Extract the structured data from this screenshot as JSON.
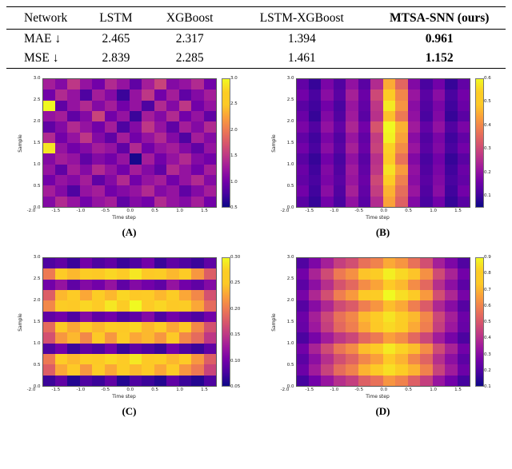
{
  "table": {
    "headers": [
      "Network",
      "LSTM",
      "XGBoost",
      "LSTM-XGBoost",
      "MTSA-SNN (ours)"
    ],
    "rows": [
      {
        "label": "MAE ↓",
        "values": [
          "2.465",
          "2.317",
          "1.394",
          "0.961"
        ]
      },
      {
        "label": "MSE ↓",
        "values": [
          "2.839",
          "2.285",
          "1.461",
          "1.152"
        ]
      }
    ]
  },
  "colors": {
    "colormap": "plasma",
    "plasma_stops": [
      [
        0.0,
        "#0d0887"
      ],
      [
        0.1,
        "#46039f"
      ],
      [
        0.2,
        "#7201a8"
      ],
      [
        0.3,
        "#9c179e"
      ],
      [
        0.4,
        "#bd3786"
      ],
      [
        0.5,
        "#d8576b"
      ],
      [
        0.6,
        "#ed7953"
      ],
      [
        0.7,
        "#fa9e3b"
      ],
      [
        0.8,
        "#fdc926"
      ],
      [
        0.9,
        "#fccd25"
      ],
      [
        1.0,
        "#f0f921"
      ]
    ]
  },
  "chart_data": [
    {
      "type": "heatmap",
      "title": "(A)",
      "xlabel": "Time step",
      "ylabel": "Sample",
      "x_ticks": [
        "-2.0",
        "-1.5",
        "-1.0",
        "-0.5",
        "0.0",
        "0.5",
        "1.0",
        "1.5"
      ],
      "x_tick_values": [
        -2.0,
        -1.5,
        -1.0,
        -0.5,
        0.0,
        0.5,
        1.0,
        1.5
      ],
      "x_range": [
        -2.0,
        1.75
      ],
      "y_ticks": [
        "3.0",
        "2.5",
        "2.0",
        "1.5",
        "1.0",
        "0.5",
        "0.0"
      ],
      "y_tick_values": [
        3.0,
        2.5,
        2.0,
        1.5,
        1.0,
        0.5,
        0.0
      ],
      "y_range": [
        0.0,
        3.0
      ],
      "vmin": 0.5,
      "vmax": 3.0,
      "colorbar_ticks": [
        "3.0",
        "2.5",
        "2.0",
        "1.5",
        "1.0",
        "0.5"
      ],
      "colorbar_tick_values": [
        3.0,
        2.5,
        2.0,
        1.5,
        1.0,
        0.5
      ],
      "values": [
        [
          1.3,
          1.1,
          1.5,
          1.2,
          1.0,
          1.4,
          1.2,
          0.9,
          1.3,
          1.6,
          1.1,
          1.2,
          1.4,
          1.0
        ],
        [
          1.0,
          1.4,
          1.2,
          0.8,
          1.3,
          1.1,
          0.7,
          1.2,
          1.5,
          1.0,
          1.3,
          0.9,
          1.1,
          1.3
        ],
        [
          3.0,
          0.9,
          1.2,
          1.4,
          1.1,
          1.3,
          1.0,
          1.2,
          0.8,
          1.4,
          1.1,
          1.5,
          1.0,
          1.2
        ],
        [
          1.2,
          1.3,
          0.9,
          1.1,
          1.6,
          1.0,
          1.2,
          0.7,
          1.3,
          1.1,
          1.4,
          1.0,
          1.2,
          0.9
        ],
        [
          0.9,
          1.1,
          1.4,
          1.2,
          1.0,
          1.3,
          0.8,
          1.1,
          1.5,
          1.2,
          0.9,
          1.3,
          1.1,
          1.4
        ],
        [
          1.4,
          1.0,
          1.2,
          1.5,
          1.1,
          0.9,
          1.3,
          1.0,
          1.2,
          1.4,
          1.1,
          0.8,
          1.3,
          1.1
        ],
        [
          2.9,
          1.2,
          1.0,
          1.1,
          1.3,
          1.2,
          0.9,
          1.4,
          1.0,
          1.2,
          1.3,
          1.1,
          0.9,
          1.2
        ],
        [
          1.1,
          1.3,
          1.2,
          0.9,
          1.1,
          1.0,
          1.2,
          0.55,
          1.3,
          1.0,
          1.2,
          1.4,
          1.1,
          1.0
        ],
        [
          1.2,
          0.9,
          1.3,
          1.1,
          1.4,
          1.2,
          1.0,
          1.3,
          1.1,
          0.9,
          1.4,
          1.2,
          1.0,
          1.3
        ],
        [
          1.0,
          1.2,
          1.1,
          1.3,
          0.9,
          1.1,
          1.4,
          1.0,
          1.2,
          1.3,
          1.0,
          1.2,
          1.4,
          1.1
        ],
        [
          1.3,
          1.1,
          0.8,
          1.2,
          1.3,
          1.0,
          1.1,
          1.2,
          1.4,
          1.1,
          1.2,
          0.9,
          1.1,
          1.3
        ],
        [
          1.1,
          1.4,
          1.2,
          1.0,
          1.2,
          1.3,
          0.9,
          1.1,
          1.0,
          1.4,
          1.2,
          1.1,
          1.3,
          1.0
        ]
      ]
    },
    {
      "type": "heatmap",
      "title": "(B)",
      "xlabel": "Time step",
      "ylabel": "Sample",
      "x_ticks": [
        "-2.0",
        "-1.5",
        "-1.0",
        "-0.5",
        "0.0",
        "0.5",
        "1.0",
        "1.5"
      ],
      "x_tick_values": [
        -2.0,
        -1.5,
        -1.0,
        -0.5,
        0.0,
        0.5,
        1.0,
        1.5
      ],
      "x_range": [
        -2.0,
        1.75
      ],
      "y_ticks": [
        "3.0",
        "2.5",
        "2.0",
        "1.5",
        "1.0",
        "0.5",
        "0.0"
      ],
      "y_tick_values": [
        3.0,
        2.5,
        2.0,
        1.5,
        1.0,
        0.5,
        0.0
      ],
      "y_range": [
        0.0,
        3.0
      ],
      "vmin": 0.05,
      "vmax": 0.6,
      "colorbar_ticks": [
        "0.6",
        "0.5",
        "0.4",
        "0.3",
        "0.2",
        "0.1"
      ],
      "colorbar_tick_values": [
        0.6,
        0.5,
        0.4,
        0.3,
        0.2,
        0.1
      ],
      "values": [
        [
          0.14,
          0.09,
          0.17,
          0.12,
          0.2,
          0.13,
          0.25,
          0.45,
          0.35,
          0.18,
          0.11,
          0.16,
          0.09,
          0.14
        ],
        [
          0.16,
          0.11,
          0.19,
          0.13,
          0.23,
          0.15,
          0.3,
          0.52,
          0.4,
          0.21,
          0.13,
          0.19,
          0.11,
          0.16
        ],
        [
          0.13,
          0.1,
          0.16,
          0.11,
          0.21,
          0.14,
          0.27,
          0.58,
          0.42,
          0.19,
          0.12,
          0.17,
          0.1,
          0.15
        ],
        [
          0.15,
          0.09,
          0.18,
          0.12,
          0.22,
          0.13,
          0.26,
          0.48,
          0.38,
          0.2,
          0.11,
          0.18,
          0.09,
          0.13
        ],
        [
          0.17,
          0.12,
          0.2,
          0.14,
          0.24,
          0.16,
          0.32,
          0.6,
          0.46,
          0.22,
          0.14,
          0.2,
          0.12,
          0.17
        ],
        [
          0.14,
          0.1,
          0.17,
          0.12,
          0.21,
          0.14,
          0.28,
          0.59,
          0.44,
          0.19,
          0.12,
          0.17,
          0.1,
          0.14
        ],
        [
          0.16,
          0.11,
          0.19,
          0.13,
          0.23,
          0.15,
          0.29,
          0.55,
          0.41,
          0.21,
          0.13,
          0.18,
          0.11,
          0.16
        ],
        [
          0.13,
          0.09,
          0.16,
          0.11,
          0.2,
          0.13,
          0.26,
          0.5,
          0.37,
          0.18,
          0.11,
          0.16,
          0.09,
          0.13
        ],
        [
          0.15,
          0.1,
          0.18,
          0.12,
          0.22,
          0.14,
          0.27,
          0.57,
          0.43,
          0.2,
          0.12,
          0.17,
          0.1,
          0.15
        ],
        [
          0.14,
          0.11,
          0.17,
          0.13,
          0.21,
          0.15,
          0.3,
          0.53,
          0.39,
          0.19,
          0.13,
          0.18,
          0.11,
          0.14
        ],
        [
          0.16,
          0.1,
          0.19,
          0.12,
          0.23,
          0.14,
          0.28,
          0.46,
          0.36,
          0.21,
          0.12,
          0.19,
          0.1,
          0.16
        ],
        [
          0.13,
          0.09,
          0.16,
          0.11,
          0.2,
          0.13,
          0.25,
          0.44,
          0.34,
          0.18,
          0.11,
          0.16,
          0.09,
          0.13
        ]
      ]
    },
    {
      "type": "heatmap",
      "title": "(C)",
      "xlabel": "Time step",
      "ylabel": "Sample",
      "x_ticks": [
        "-2.0",
        "-1.5",
        "-1.0",
        "-0.5",
        "0.0",
        "0.5",
        "1.0",
        "1.5"
      ],
      "x_tick_values": [
        -2.0,
        -1.5,
        -1.0,
        -0.5,
        0.0,
        0.5,
        1.0,
        1.5
      ],
      "x_range": [
        -2.0,
        1.75
      ],
      "y_ticks": [
        "3.0",
        "2.5",
        "2.0",
        "1.5",
        "1.0",
        "0.5",
        "0.0"
      ],
      "y_tick_values": [
        3.0,
        2.5,
        2.0,
        1.5,
        1.0,
        0.5,
        0.0
      ],
      "y_range": [
        0.0,
        3.0
      ],
      "vmin": 0.05,
      "vmax": 0.3,
      "colorbar_ticks": [
        "0.30",
        "0.25",
        "0.20",
        "0.15",
        "0.10",
        "0.05"
      ],
      "colorbar_tick_values": [
        0.3,
        0.25,
        0.2,
        0.15,
        0.1,
        0.05
      ],
      "values": [
        [
          0.08,
          0.09,
          0.07,
          0.1,
          0.08,
          0.09,
          0.07,
          0.08,
          0.1,
          0.07,
          0.09,
          0.08,
          0.07,
          0.09
        ],
        [
          0.2,
          0.26,
          0.24,
          0.27,
          0.25,
          0.28,
          0.26,
          0.29,
          0.25,
          0.27,
          0.24,
          0.26,
          0.22,
          0.18
        ],
        [
          0.1,
          0.12,
          0.09,
          0.11,
          0.1,
          0.12,
          0.09,
          0.11,
          0.1,
          0.09,
          0.12,
          0.1,
          0.09,
          0.11
        ],
        [
          0.18,
          0.24,
          0.26,
          0.23,
          0.27,
          0.24,
          0.28,
          0.25,
          0.26,
          0.24,
          0.27,
          0.23,
          0.21,
          0.17
        ],
        [
          0.21,
          0.27,
          0.25,
          0.28,
          0.26,
          0.29,
          0.27,
          0.3,
          0.26,
          0.28,
          0.25,
          0.27,
          0.23,
          0.19
        ],
        [
          0.09,
          0.1,
          0.08,
          0.11,
          0.09,
          0.1,
          0.08,
          0.09,
          0.11,
          0.08,
          0.1,
          0.09,
          0.08,
          0.1
        ],
        [
          0.19,
          0.25,
          0.23,
          0.26,
          0.24,
          0.27,
          0.25,
          0.28,
          0.24,
          0.26,
          0.23,
          0.25,
          0.21,
          0.17
        ],
        [
          0.17,
          0.22,
          0.24,
          0.21,
          0.25,
          0.22,
          0.26,
          0.23,
          0.24,
          0.22,
          0.25,
          0.21,
          0.19,
          0.15
        ],
        [
          0.08,
          0.1,
          0.07,
          0.09,
          0.08,
          0.1,
          0.07,
          0.09,
          0.08,
          0.07,
          0.1,
          0.08,
          0.07,
          0.09
        ],
        [
          0.2,
          0.26,
          0.24,
          0.27,
          0.25,
          0.28,
          0.26,
          0.29,
          0.25,
          0.27,
          0.24,
          0.26,
          0.22,
          0.18
        ],
        [
          0.18,
          0.23,
          0.25,
          0.22,
          0.26,
          0.23,
          0.27,
          0.24,
          0.25,
          0.23,
          0.26,
          0.22,
          0.2,
          0.16
        ],
        [
          0.07,
          0.09,
          0.06,
          0.08,
          0.07,
          0.09,
          0.06,
          0.08,
          0.07,
          0.06,
          0.09,
          0.07,
          0.06,
          0.08
        ]
      ]
    },
    {
      "type": "heatmap",
      "title": "(D)",
      "xlabel": "Time step",
      "ylabel": "Sample",
      "x_ticks": [
        "-2.0",
        "-1.5",
        "-1.0",
        "-0.5",
        "0.0",
        "0.5",
        "1.0",
        "1.5"
      ],
      "x_tick_values": [
        -2.0,
        -1.5,
        -1.0,
        -0.5,
        0.0,
        0.5,
        1.0,
        1.5
      ],
      "x_range": [
        -2.0,
        1.75
      ],
      "y_ticks": [
        "3.0",
        "2.5",
        "2.0",
        "1.5",
        "1.0",
        "0.5",
        "0.0"
      ],
      "y_tick_values": [
        3.0,
        2.5,
        2.0,
        1.5,
        1.0,
        0.5,
        0.0
      ],
      "y_range": [
        0.0,
        3.0
      ],
      "vmin": 0.1,
      "vmax": 0.9,
      "colorbar_ticks": [
        "0.9",
        "0.8",
        "0.7",
        "0.6",
        "0.5",
        "0.4",
        "0.3",
        "0.2",
        "0.1"
      ],
      "colorbar_tick_values": [
        0.9,
        0.8,
        0.7,
        0.6,
        0.5,
        0.4,
        0.3,
        0.2,
        0.1
      ],
      "values": [
        [
          0.2,
          0.28,
          0.36,
          0.44,
          0.48,
          0.56,
          0.6,
          0.68,
          0.64,
          0.56,
          0.48,
          0.36,
          0.28,
          0.2
        ],
        [
          0.26,
          0.37,
          0.47,
          0.58,
          0.63,
          0.73,
          0.79,
          0.88,
          0.84,
          0.73,
          0.63,
          0.47,
          0.37,
          0.26
        ],
        [
          0.22,
          0.31,
          0.4,
          0.49,
          0.54,
          0.62,
          0.67,
          0.75,
          0.71,
          0.62,
          0.54,
          0.4,
          0.31,
          0.22
        ],
        [
          0.27,
          0.38,
          0.48,
          0.59,
          0.65,
          0.75,
          0.8,
          0.9,
          0.85,
          0.75,
          0.65,
          0.48,
          0.38,
          0.27
        ],
        [
          0.21,
          0.3,
          0.38,
          0.47,
          0.51,
          0.59,
          0.64,
          0.72,
          0.68,
          0.59,
          0.51,
          0.38,
          0.3,
          0.21
        ],
        [
          0.25,
          0.36,
          0.46,
          0.56,
          0.61,
          0.71,
          0.77,
          0.86,
          0.82,
          0.71,
          0.61,
          0.46,
          0.36,
          0.25
        ],
        [
          0.24,
          0.34,
          0.44,
          0.54,
          0.59,
          0.68,
          0.74,
          0.84,
          0.79,
          0.68,
          0.59,
          0.44,
          0.34,
          0.24
        ],
        [
          0.19,
          0.27,
          0.35,
          0.42,
          0.46,
          0.54,
          0.58,
          0.66,
          0.62,
          0.54,
          0.46,
          0.35,
          0.27,
          0.19
        ],
        [
          0.26,
          0.37,
          0.47,
          0.57,
          0.62,
          0.72,
          0.78,
          0.87,
          0.83,
          0.72,
          0.62,
          0.47,
          0.37,
          0.26
        ],
        [
          0.22,
          0.31,
          0.4,
          0.48,
          0.53,
          0.61,
          0.66,
          0.74,
          0.7,
          0.61,
          0.53,
          0.4,
          0.31,
          0.22
        ],
        [
          0.25,
          0.35,
          0.45,
          0.55,
          0.6,
          0.7,
          0.75,
          0.85,
          0.8,
          0.7,
          0.6,
          0.45,
          0.35,
          0.25
        ],
        [
          0.18,
          0.26,
          0.33,
          0.4,
          0.44,
          0.52,
          0.56,
          0.64,
          0.6,
          0.52,
          0.44,
          0.33,
          0.26,
          0.18
        ]
      ]
    }
  ]
}
